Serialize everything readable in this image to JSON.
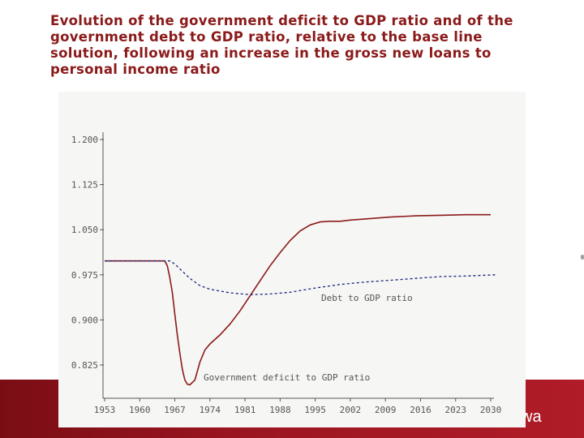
{
  "slide": {
    "title": "Evolution of the government deficit to GDP ratio and of the government debt to GDP ratio, relative to the base line solution,  following an increase in the gross new loans to personal income ratio",
    "footer_text": "wa"
  },
  "chart_data": {
    "type": "line",
    "xlim": [
      1953,
      2030
    ],
    "ylim": [
      0.78,
      1.21
    ],
    "y_ticks": [
      "1.200",
      "1.125",
      "1.050",
      "0.975",
      "0.900",
      "0.825"
    ],
    "y_tick_values": [
      1.2,
      1.125,
      1.05,
      0.975,
      0.9,
      0.825
    ],
    "x_ticks": [
      "1953",
      "1960",
      "1967",
      "1974",
      "1981",
      "1988",
      "1995",
      "2002",
      "2009",
      "2016",
      "2023",
      "2030"
    ],
    "x_tick_values": [
      1953,
      1960,
      1967,
      1974,
      1981,
      1988,
      1995,
      2002,
      2009,
      2016,
      2023,
      2030
    ],
    "grid": false,
    "series": [
      {
        "name": "Government deficit to GDP ratio",
        "color": "#8b1a1a",
        "style": "solid",
        "x": [
          1953,
          1965,
          1965.5,
          1966,
          1966.5,
          1967,
          1967.5,
          1968,
          1968.5,
          1969,
          1969.5,
          1970,
          1971,
          1972,
          1973,
          1974,
          1976,
          1978,
          1980,
          1982,
          1984,
          1986,
          1988,
          1990,
          1992,
          1994,
          1996,
          1998,
          2000,
          2002,
          2005,
          2010,
          2015,
          2020,
          2025,
          2030
        ],
        "values": [
          0.998,
          0.998,
          0.99,
          0.97,
          0.945,
          0.91,
          0.875,
          0.845,
          0.818,
          0.8,
          0.793,
          0.792,
          0.8,
          0.83,
          0.85,
          0.86,
          0.875,
          0.893,
          0.915,
          0.94,
          0.965,
          0.99,
          1.012,
          1.032,
          1.048,
          1.058,
          1.063,
          1.064,
          1.064,
          1.066,
          1.068,
          1.071,
          1.073,
          1.074,
          1.075,
          1.075
        ]
      },
      {
        "name": "Debt to GDP ratio",
        "color": "#1a237e",
        "style": "dashed",
        "x": [
          1953,
          1966,
          1967,
          1968,
          1970,
          1972,
          1974,
          1978,
          1982,
          1986,
          1990,
          1995,
          2000,
          2005,
          2010,
          2015,
          2020,
          2025,
          2031
        ],
        "values": [
          0.998,
          0.998,
          0.993,
          0.985,
          0.969,
          0.957,
          0.951,
          0.945,
          0.942,
          0.943,
          0.946,
          0.953,
          0.959,
          0.963,
          0.966,
          0.969,
          0.972,
          0.973,
          0.975
        ]
      }
    ]
  }
}
